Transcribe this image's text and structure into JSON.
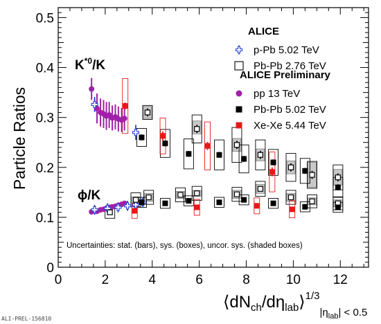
{
  "chart_data": {
    "type": "scatter",
    "ylabel": "Particle Ratios",
    "xlabel": {
      "main": "⟨dN",
      "ch": "ch",
      "slash": "/dη",
      "lab": "lab",
      "close": "⟩",
      "power": "1/3",
      "cond_prefix": "|η",
      "cond_lab": "lab",
      "cond_suffix": "| < 0.5"
    },
    "xlim": [
      0,
      13.2
    ],
    "ylim": [
      0,
      0.52
    ],
    "xticks": [
      "0",
      "2",
      "4",
      "6",
      "8",
      "10",
      "12"
    ],
    "yticks": [
      "0",
      "0.1",
      "0.2",
      "0.3",
      "0.4",
      "0.5"
    ],
    "xtick_values": [
      0,
      2,
      4,
      6,
      8,
      10,
      12
    ],
    "ytick_values": [
      0,
      0.1,
      0.2,
      0.3,
      0.4,
      0.5
    ],
    "annotations": {
      "kstar_main": "K",
      "kstar_sup": "*0",
      "kstar_tail": "/K",
      "phi": "ϕ/K",
      "uncertainties": "Uncertainties: stat. (bars), sys. (boxes), uncor. sys. (shaded boxes)",
      "footer_id": "ALI-PREL-156810"
    },
    "legend": {
      "placement": "top-right",
      "header1": "ALICE",
      "header2": "ALICE Preliminary",
      "entries": [
        {
          "label": "p-Pb 5.02 TeV",
          "marker": "open-cross",
          "color": "#1f3fd8"
        },
        {
          "label": "Pb-Pb 2.76 TeV",
          "marker": "open-square",
          "color": "#000000"
        },
        {
          "label": "pp 13 TeV",
          "marker": "circle",
          "color": "#a020a8"
        },
        {
          "label": "Pb-Pb 5.02 TeV",
          "marker": "square",
          "color": "#000000"
        },
        {
          "label": "Xe-Xe 5.44 TeV",
          "marker": "square",
          "color": "#e81818"
        }
      ]
    },
    "series": [
      {
        "name": "pp 13 TeV",
        "marker": "circle",
        "color": "#a020a8",
        "group": "kstar",
        "x": [
          1.42,
          1.65,
          1.8,
          1.93,
          2.05,
          2.17,
          2.3,
          2.43,
          2.56,
          2.7,
          2.82
        ],
        "y": [
          0.357,
          0.318,
          0.31,
          0.307,
          0.303,
          0.305,
          0.299,
          0.301,
          0.297,
          0.295,
          0.298
        ],
        "stat": [
          0.022,
          0.03,
          0.028,
          0.028,
          0.028,
          0.026,
          0.025,
          0.025,
          0.025,
          0.024,
          0.024
        ]
      },
      {
        "name": "pp 13 TeV",
        "marker": "circle",
        "color": "#a020a8",
        "group": "phi",
        "x": [
          1.42,
          1.65,
          1.8,
          1.93,
          2.05,
          2.17,
          2.3,
          2.43,
          2.56,
          2.7,
          2.82
        ],
        "y": [
          0.111,
          0.112,
          0.115,
          0.116,
          0.118,
          0.12,
          0.121,
          0.122,
          0.124,
          0.126,
          0.128
        ],
        "stat": [
          0.004,
          0.005,
          0.005,
          0.005,
          0.005,
          0.005,
          0.005,
          0.005,
          0.005,
          0.005,
          0.005
        ]
      },
      {
        "name": "p-Pb 5.02 TeV",
        "marker": "open-cross",
        "color": "#1f3fd8",
        "group": "kstar",
        "x": [
          1.55,
          3.3
        ],
        "y": [
          0.326,
          0.27
        ],
        "stat": [
          0.015,
          0.015
        ]
      },
      {
        "name": "p-Pb 5.02 TeV",
        "marker": "open-cross",
        "color": "#1f3fd8",
        "group": "phi",
        "x": [
          1.55,
          2.1,
          2.55,
          2.95,
          3.3,
          3.6
        ],
        "y": [
          0.115,
          0.118,
          0.12,
          0.123,
          0.125,
          0.13
        ],
        "stat": [
          0.01,
          0.01,
          0.01,
          0.01,
          0.01,
          0.01
        ]
      },
      {
        "name": "Pb-Pb 2.76 TeV",
        "marker": "open-square",
        "color": "#000000",
        "group": "kstar",
        "x": [
          3.8,
          5.9,
          7.6,
          8.6,
          9.9,
          10.8,
          11.9
        ],
        "y": [
          0.31,
          0.277,
          0.245,
          0.225,
          0.2,
          0.185,
          0.18
        ],
        "sys": [
          0.014,
          0.028,
          0.035,
          0.03,
          0.028,
          0.027,
          0.025
        ],
        "stat": [
          0.008,
          0.008,
          0.008,
          0.008,
          0.008,
          0.008,
          0.008
        ]
      },
      {
        "name": "Pb-Pb 2.76 TeV",
        "marker": "open-square",
        "color": "#000000",
        "group": "phi",
        "x": [
          2.2,
          3.3,
          3.85,
          5.2,
          5.9,
          7.6,
          8.6,
          9.9,
          10.8,
          11.9
        ],
        "y": [
          0.11,
          0.135,
          0.14,
          0.145,
          0.148,
          0.146,
          0.157,
          0.14,
          0.132,
          0.128
        ],
        "sys": [
          0.012,
          0.014,
          0.014,
          0.014,
          0.014,
          0.014,
          0.015,
          0.014,
          0.013,
          0.013
        ],
        "stat": [
          0.005,
          0.005,
          0.005,
          0.005,
          0.005,
          0.005,
          0.005,
          0.005,
          0.005,
          0.005
        ]
      },
      {
        "name": "Pb-Pb 5.02 TeV",
        "marker": "square",
        "color": "#000000",
        "group": "kstar",
        "x": [
          3.55,
          4.55,
          5.55,
          6.85,
          7.9,
          9.15,
          10.5,
          11.9
        ],
        "y": [
          0.26,
          0.248,
          0.227,
          0.225,
          0.217,
          0.21,
          0.193,
          0.16
        ],
        "sys": [
          0.018,
          0.028,
          0.03,
          0.03,
          0.028,
          0.026,
          0.025,
          0.02
        ],
        "stat": [
          0.006,
          0.006,
          0.006,
          0.006,
          0.006,
          0.006,
          0.006,
          0.006
        ]
      },
      {
        "name": "Pb-Pb 5.02 TeV",
        "marker": "square",
        "color": "#000000",
        "group": "phi",
        "x": [
          3.55,
          4.55,
          5.55,
          6.85,
          7.9,
          9.15,
          10.5,
          11.9
        ],
        "y": [
          0.13,
          0.128,
          0.133,
          0.13,
          0.135,
          0.128,
          0.121,
          0.12
        ],
        "sys": [
          0.01,
          0.01,
          0.01,
          0.01,
          0.01,
          0.01,
          0.01,
          0.01
        ],
        "stat": [
          0.004,
          0.004,
          0.004,
          0.004,
          0.004,
          0.004,
          0.004,
          0.004
        ]
      },
      {
        "name": "Xe-Xe 5.44 TeV",
        "marker": "square",
        "color": "#e81818",
        "group": "kstar",
        "x": [
          2.85,
          4.45,
          6.35,
          9.1
        ],
        "y": [
          0.323,
          0.263,
          0.243,
          0.191
        ],
        "sys": [
          0.055,
          0.036,
          0.048,
          0.04
        ],
        "stat": [
          0.007,
          0.009,
          0.008,
          0.009
        ]
      },
      {
        "name": "Xe-Xe 5.44 TeV",
        "marker": "square",
        "color": "#e81818",
        "group": "phi",
        "x": [
          3.25,
          5.9,
          8.45,
          9.95
        ],
        "y": [
          0.113,
          0.12,
          0.123,
          0.116
        ],
        "sys": [
          0.015,
          0.016,
          0.016,
          0.017
        ],
        "stat": [
          0.005,
          0.005,
          0.005,
          0.005
        ]
      }
    ],
    "shaded_boxes": [
      {
        "x": 3.8,
        "y": 0.31,
        "half": 0.012
      },
      {
        "x": 5.9,
        "y": 0.28,
        "half": 0.013
      },
      {
        "x": 7.6,
        "y": 0.245,
        "half": 0.013
      },
      {
        "x": 8.6,
        "y": 0.225,
        "half": 0.012
      },
      {
        "x": 9.9,
        "y": 0.2,
        "half": 0.013
      },
      {
        "x": 10.8,
        "y": 0.185,
        "half": 0.025
      },
      {
        "x": 11.9,
        "y": 0.18,
        "half": 0.016
      },
      {
        "x": 3.3,
        "y": 0.135,
        "half": 0.006
      },
      {
        "x": 3.85,
        "y": 0.14,
        "half": 0.008
      },
      {
        "x": 5.2,
        "y": 0.145,
        "half": 0.007
      },
      {
        "x": 5.9,
        "y": 0.148,
        "half": 0.006
      },
      {
        "x": 7.6,
        "y": 0.146,
        "half": 0.008
      },
      {
        "x": 8.6,
        "y": 0.157,
        "half": 0.009
      },
      {
        "x": 9.9,
        "y": 0.14,
        "half": 0.008
      },
      {
        "x": 10.8,
        "y": 0.132,
        "half": 0.007
      },
      {
        "x": 11.9,
        "y": 0.128,
        "half": 0.007
      }
    ]
  }
}
